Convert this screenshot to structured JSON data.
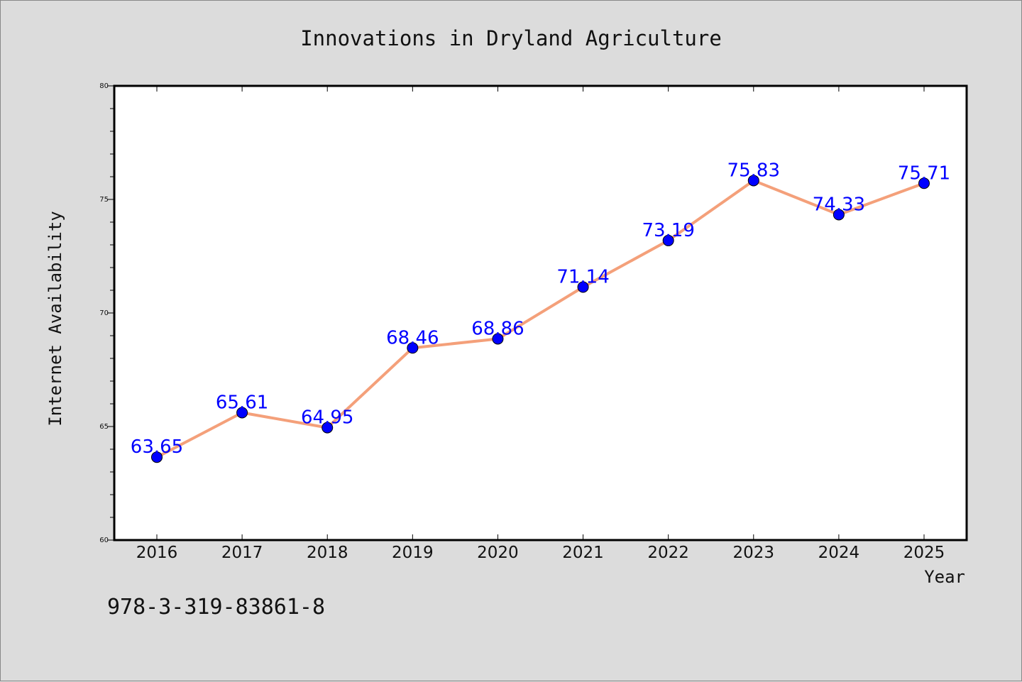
{
  "chart_data": {
    "type": "line",
    "title": "Innovations in Dryland Agriculture",
    "xlabel": "Year",
    "ylabel": "Internet Availability",
    "categories": [
      "2016",
      "2017",
      "2018",
      "2019",
      "2020",
      "2021",
      "2022",
      "2023",
      "2024",
      "2025"
    ],
    "series": [
      {
        "values": [
          63.65,
          65.61,
          64.95,
          68.46,
          68.86,
          71.14,
          73.19,
          75.83,
          74.33,
          75.71
        ],
        "data_labels": [
          "63.65",
          "65.61",
          "64.95",
          "68.46",
          "68.86",
          "71.14",
          "73.19",
          "75.83",
          "74.33",
          "75.71"
        ],
        "line_color": "#f4a07a",
        "marker_color": "#0000ff"
      }
    ],
    "ylim": [
      60,
      80
    ],
    "yticks": [
      "60",
      "65",
      "70",
      "75",
      "80"
    ],
    "grid": false,
    "legend": "none"
  },
  "annotation": "978-3-319-83861-8",
  "colors": {
    "background": "#dcdcdc",
    "plot_background": "#ffffff",
    "data_label": "#0000ff"
  }
}
